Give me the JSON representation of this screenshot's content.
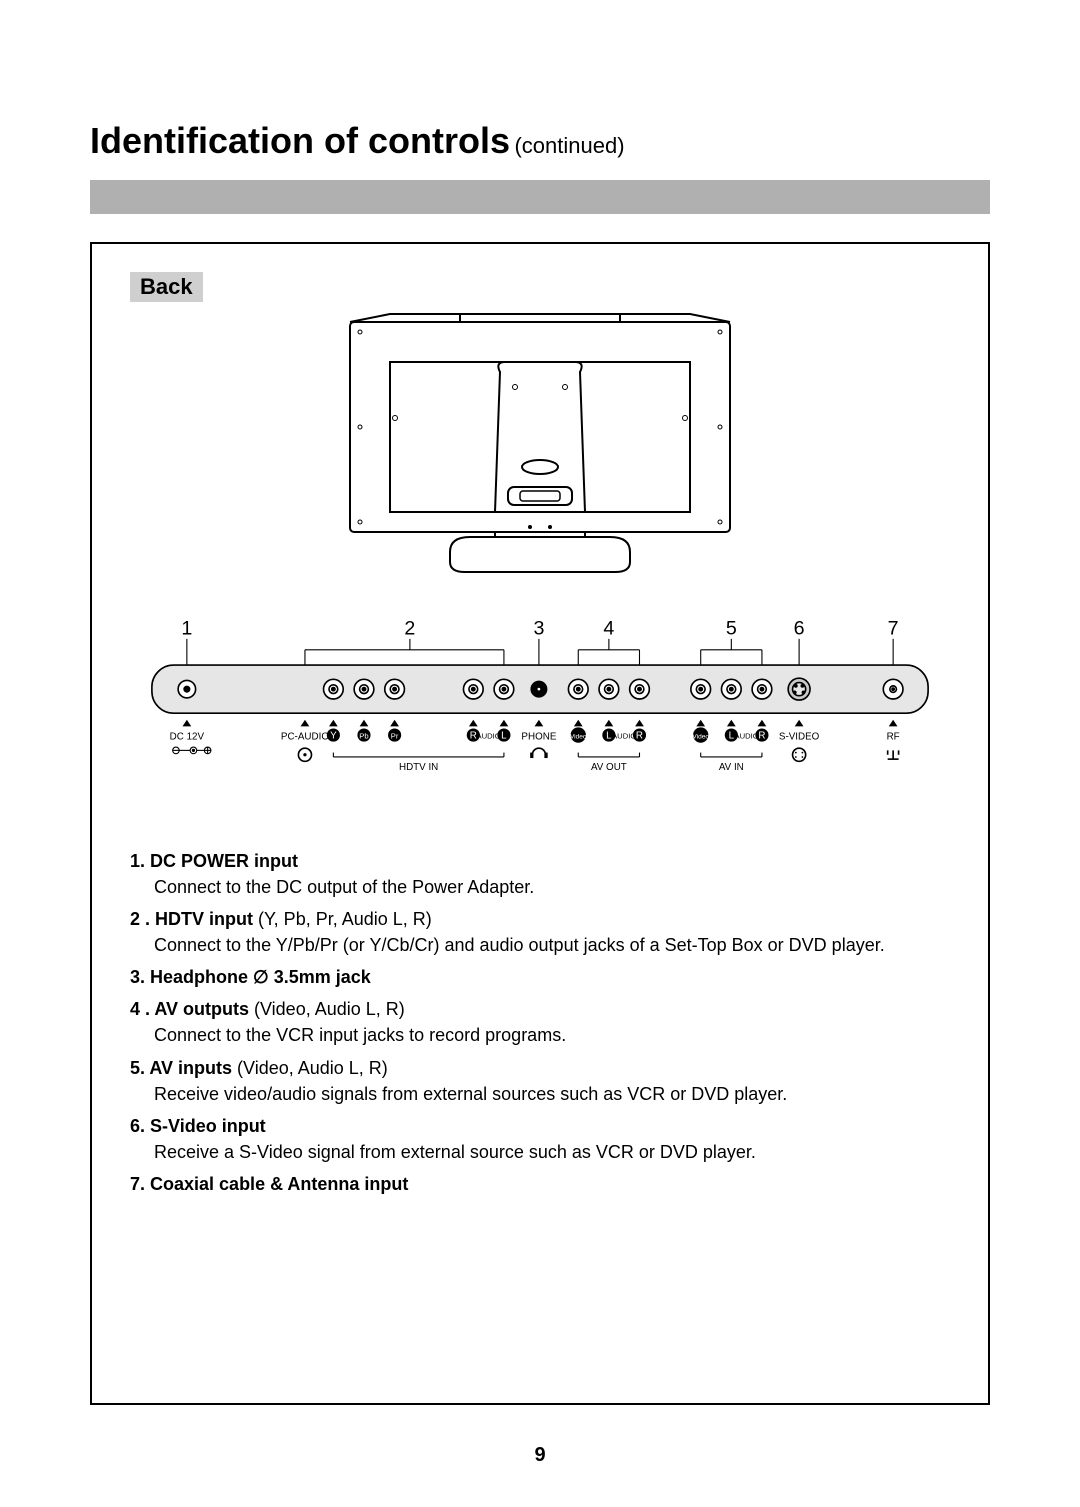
{
  "title": {
    "main": "Identification of controls",
    "sub": "(continued)"
  },
  "frame": {
    "border_color": "#000000",
    "grey_bar_color": "#b0b0b0"
  },
  "back_label": "Back",
  "page_number": "9",
  "panel": {
    "bg": "#e6e6e6",
    "border": "#000000",
    "numbers": [
      "1",
      "2",
      "3",
      "4",
      "5",
      "6",
      "7"
    ],
    "jack_positions_x": [
      52,
      186,
      214,
      242,
      314,
      342,
      374,
      410,
      438,
      466,
      522,
      550,
      578,
      612,
      698
    ],
    "labels": {
      "dc12v": "DC 12V",
      "pcaudio": "PC-AUDIO",
      "y": "Y",
      "pb": "Pb",
      "pr": "Pr",
      "r1": "R",
      "audio1": "AUDIO",
      "l1": "L",
      "phone": "PHONE",
      "video1": "Video",
      "l2": "L",
      "audio2": "AUDIO",
      "r2": "R",
      "video2": "Video",
      "l3": "L",
      "audio3": "AUDIO",
      "r3": "R",
      "svideo": "S-VIDEO",
      "rf": "RF",
      "hdtvin": "HDTV IN",
      "avout": "AV OUT",
      "avin": "AV IN"
    }
  },
  "descriptions": [
    {
      "num": "1.",
      "head": "DC POWER input",
      "sub": "",
      "body": "Connect to the DC output of the Power Adapter."
    },
    {
      "num": "2",
      "head": ". HDTV input",
      "sub": " (Y, Pb, Pr, Audio L, R)",
      "body": "Connect to the Y/Pb/Pr (or Y/Cb/Cr) and audio output jacks of a Set-Top Box or DVD player."
    },
    {
      "num": "3.",
      "head": "Headphone ∅ 3.5mm jack",
      "sub": "",
      "body": ""
    },
    {
      "num": "4",
      "head": ". AV outputs",
      "sub": " (Video, Audio L, R)",
      "body": "Connect to the VCR input jacks to record programs."
    },
    {
      "num": "5.",
      "head": "AV inputs",
      "sub": " (Video, Audio L, R)",
      "body": "Receive video/audio signals from external sources such as VCR or DVD player."
    },
    {
      "num": "6.",
      "head": "S-Video input",
      "sub": "",
      "body": "Receive a S-Video signal from external source such as VCR or DVD player."
    },
    {
      "num": "7.",
      "head": "Coaxial cable & Antenna input",
      "sub": "",
      "body": ""
    }
  ],
  "colors": {
    "text": "#000000",
    "label_bg": "#cfcfcf",
    "panel_bg": "#e6e6e6"
  },
  "fonts": {
    "title_main_pt": 36,
    "title_sub_pt": 22,
    "body_pt": 18,
    "svg_num_pt": 18,
    "svg_lbl_pt": 9
  }
}
